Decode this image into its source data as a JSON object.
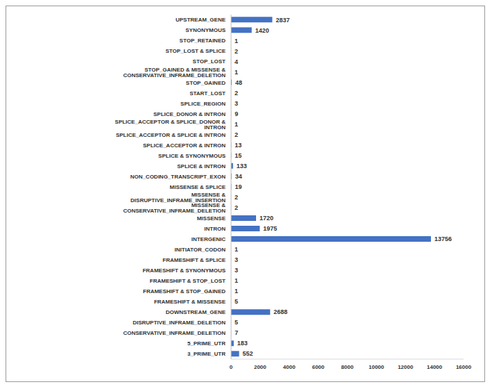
{
  "chart_data": {
    "type": "bar",
    "orientation": "horizontal",
    "categories": [
      "UPSTREAM_GENE",
      "SYNONYMOUS",
      "STOP_RETAINED",
      "STOP_LOST & SPLICE",
      "STOP_LOST",
      "STOP_GAINED & MISSENSE & CONSERVATIVE_INFRAME_DELETION",
      "STOP_GAINED",
      "START_LOST",
      "SPLICE_REGION",
      "SPLICE_DONOR & INTRON",
      "SPLICE_ACCEPTOR & SPLICE_DONOR & INTRON",
      "SPLICE_ACCEPTOR & SPLICE & INTRON",
      "SPLICE_ACCEPTOR & INTRON",
      "SPLICE & SYNONYMOUS",
      "SPLICE & INTRON",
      "NON_CODING_TRANSCRIPT_EXON",
      "MISSENSE & SPLICE",
      "MISSENSE & DISRUPTIVE_INFRAME_INSERTION",
      "MISSENSE & CONSERVATIVE_INFRAME_DELETION",
      "MISSENSE",
      "INTRON",
      "INTERGENIC",
      "INITIATOR_CODON",
      "FRAMESHIFT & SPLICE",
      "FRAMESHIFT & SYNONYMOUS",
      "FRAMESHIFT & STOP_LOST",
      "FRAMESHIFT & STOP_GAINED",
      "FRAMESHIFT & MISSENSE",
      "DOWNSTREAM_GENE",
      "DISRUPTIVE_INFRAME_DELETION",
      "CONSERVATIVE_INFRAME_DELETION",
      "5_PRIME_UTR",
      "3_PRIME_UTR"
    ],
    "values": [
      2837,
      1420,
      1,
      2,
      4,
      1,
      48,
      2,
      3,
      9,
      1,
      2,
      13,
      15,
      133,
      34,
      19,
      2,
      2,
      1720,
      1975,
      13756,
      1,
      3,
      3,
      1,
      1,
      5,
      2688,
      5,
      7,
      183,
      552
    ],
    "color": "#4472c4",
    "xlim": [
      0,
      16000
    ],
    "xticks": [
      0,
      2000,
      4000,
      6000,
      8000,
      10000,
      12000,
      14000,
      16000
    ],
    "data_labels": true,
    "grid": false
  }
}
